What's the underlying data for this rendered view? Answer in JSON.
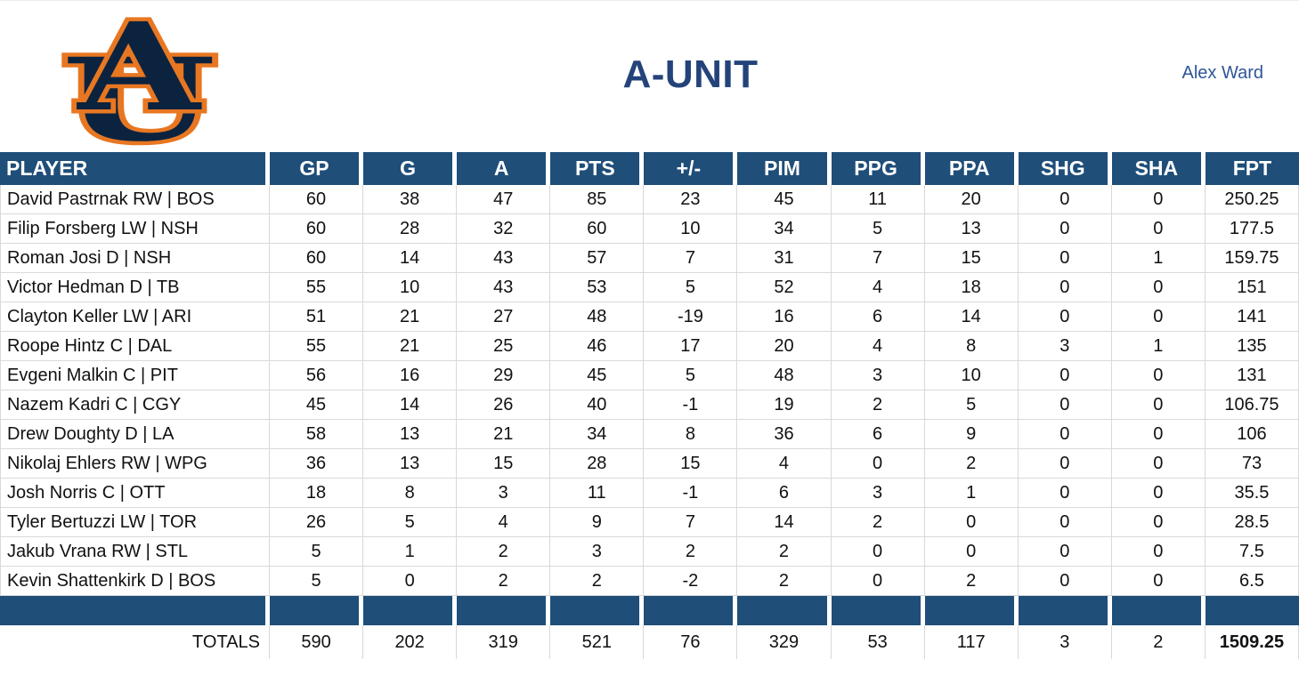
{
  "colors": {
    "navy": "#1F4E79",
    "logo-navy": "#0C2340",
    "orange": "#E87722",
    "title": "#24437A",
    "manager": "#2F5597",
    "grid": "#D9D9D9"
  },
  "header": {
    "title": "A-UNIT",
    "manager": "Alex Ward",
    "logo": "auburn-au-logo"
  },
  "table": {
    "columns": [
      "PLAYER",
      "GP",
      "G",
      "A",
      "PTS",
      "+/-",
      "PIM",
      "PPG",
      "PPA",
      "SHG",
      "SHA",
      "FPT"
    ],
    "column_keys": [
      "player",
      "gp",
      "g",
      "a",
      "pts",
      "plus-minus",
      "pim",
      "ppg",
      "ppa",
      "shg",
      "sha",
      "fpt"
    ],
    "rows": [
      [
        "David Pastrnak RW | BOS",
        60,
        38,
        47,
        85,
        23,
        45,
        11,
        20,
        0,
        0,
        250.25
      ],
      [
        "Filip Forsberg LW | NSH",
        60,
        28,
        32,
        60,
        10,
        34,
        5,
        13,
        0,
        0,
        177.5
      ],
      [
        "Roman Josi D | NSH",
        60,
        14,
        43,
        57,
        7,
        31,
        7,
        15,
        0,
        1,
        159.75
      ],
      [
        "Victor Hedman D | TB",
        55,
        10,
        43,
        53,
        5,
        52,
        4,
        18,
        0,
        0,
        151
      ],
      [
        "Clayton Keller LW | ARI",
        51,
        21,
        27,
        48,
        -19,
        16,
        6,
        14,
        0,
        0,
        141
      ],
      [
        "Roope Hintz C | DAL",
        55,
        21,
        25,
        46,
        17,
        20,
        4,
        8,
        3,
        1,
        135
      ],
      [
        "Evgeni Malkin C | PIT",
        56,
        16,
        29,
        45,
        5,
        48,
        3,
        10,
        0,
        0,
        131
      ],
      [
        "Nazem Kadri C | CGY",
        45,
        14,
        26,
        40,
        -1,
        19,
        2,
        5,
        0,
        0,
        106.75
      ],
      [
        "Drew Doughty D | LA",
        58,
        13,
        21,
        34,
        8,
        36,
        6,
        9,
        0,
        0,
        106
      ],
      [
        "Nikolaj Ehlers RW | WPG",
        36,
        13,
        15,
        28,
        15,
        4,
        0,
        2,
        0,
        0,
        73
      ],
      [
        "Josh Norris C | OTT",
        18,
        8,
        3,
        11,
        -1,
        6,
        3,
        1,
        0,
        0,
        35.5
      ],
      [
        "Tyler Bertuzzi LW | TOR",
        26,
        5,
        4,
        9,
        7,
        14,
        2,
        0,
        0,
        0,
        28.5
      ],
      [
        "Jakub Vrana RW | STL",
        5,
        1,
        2,
        3,
        2,
        2,
        0,
        0,
        0,
        0,
        7.5
      ],
      [
        "Kevin Shattenkirk D | BOS",
        5,
        0,
        2,
        2,
        -2,
        2,
        0,
        2,
        0,
        0,
        6.5
      ]
    ],
    "totals": {
      "label": "TOTALS",
      "values": [
        590,
        202,
        319,
        521,
        76,
        329,
        53,
        117,
        3,
        2,
        1509.25
      ]
    }
  }
}
